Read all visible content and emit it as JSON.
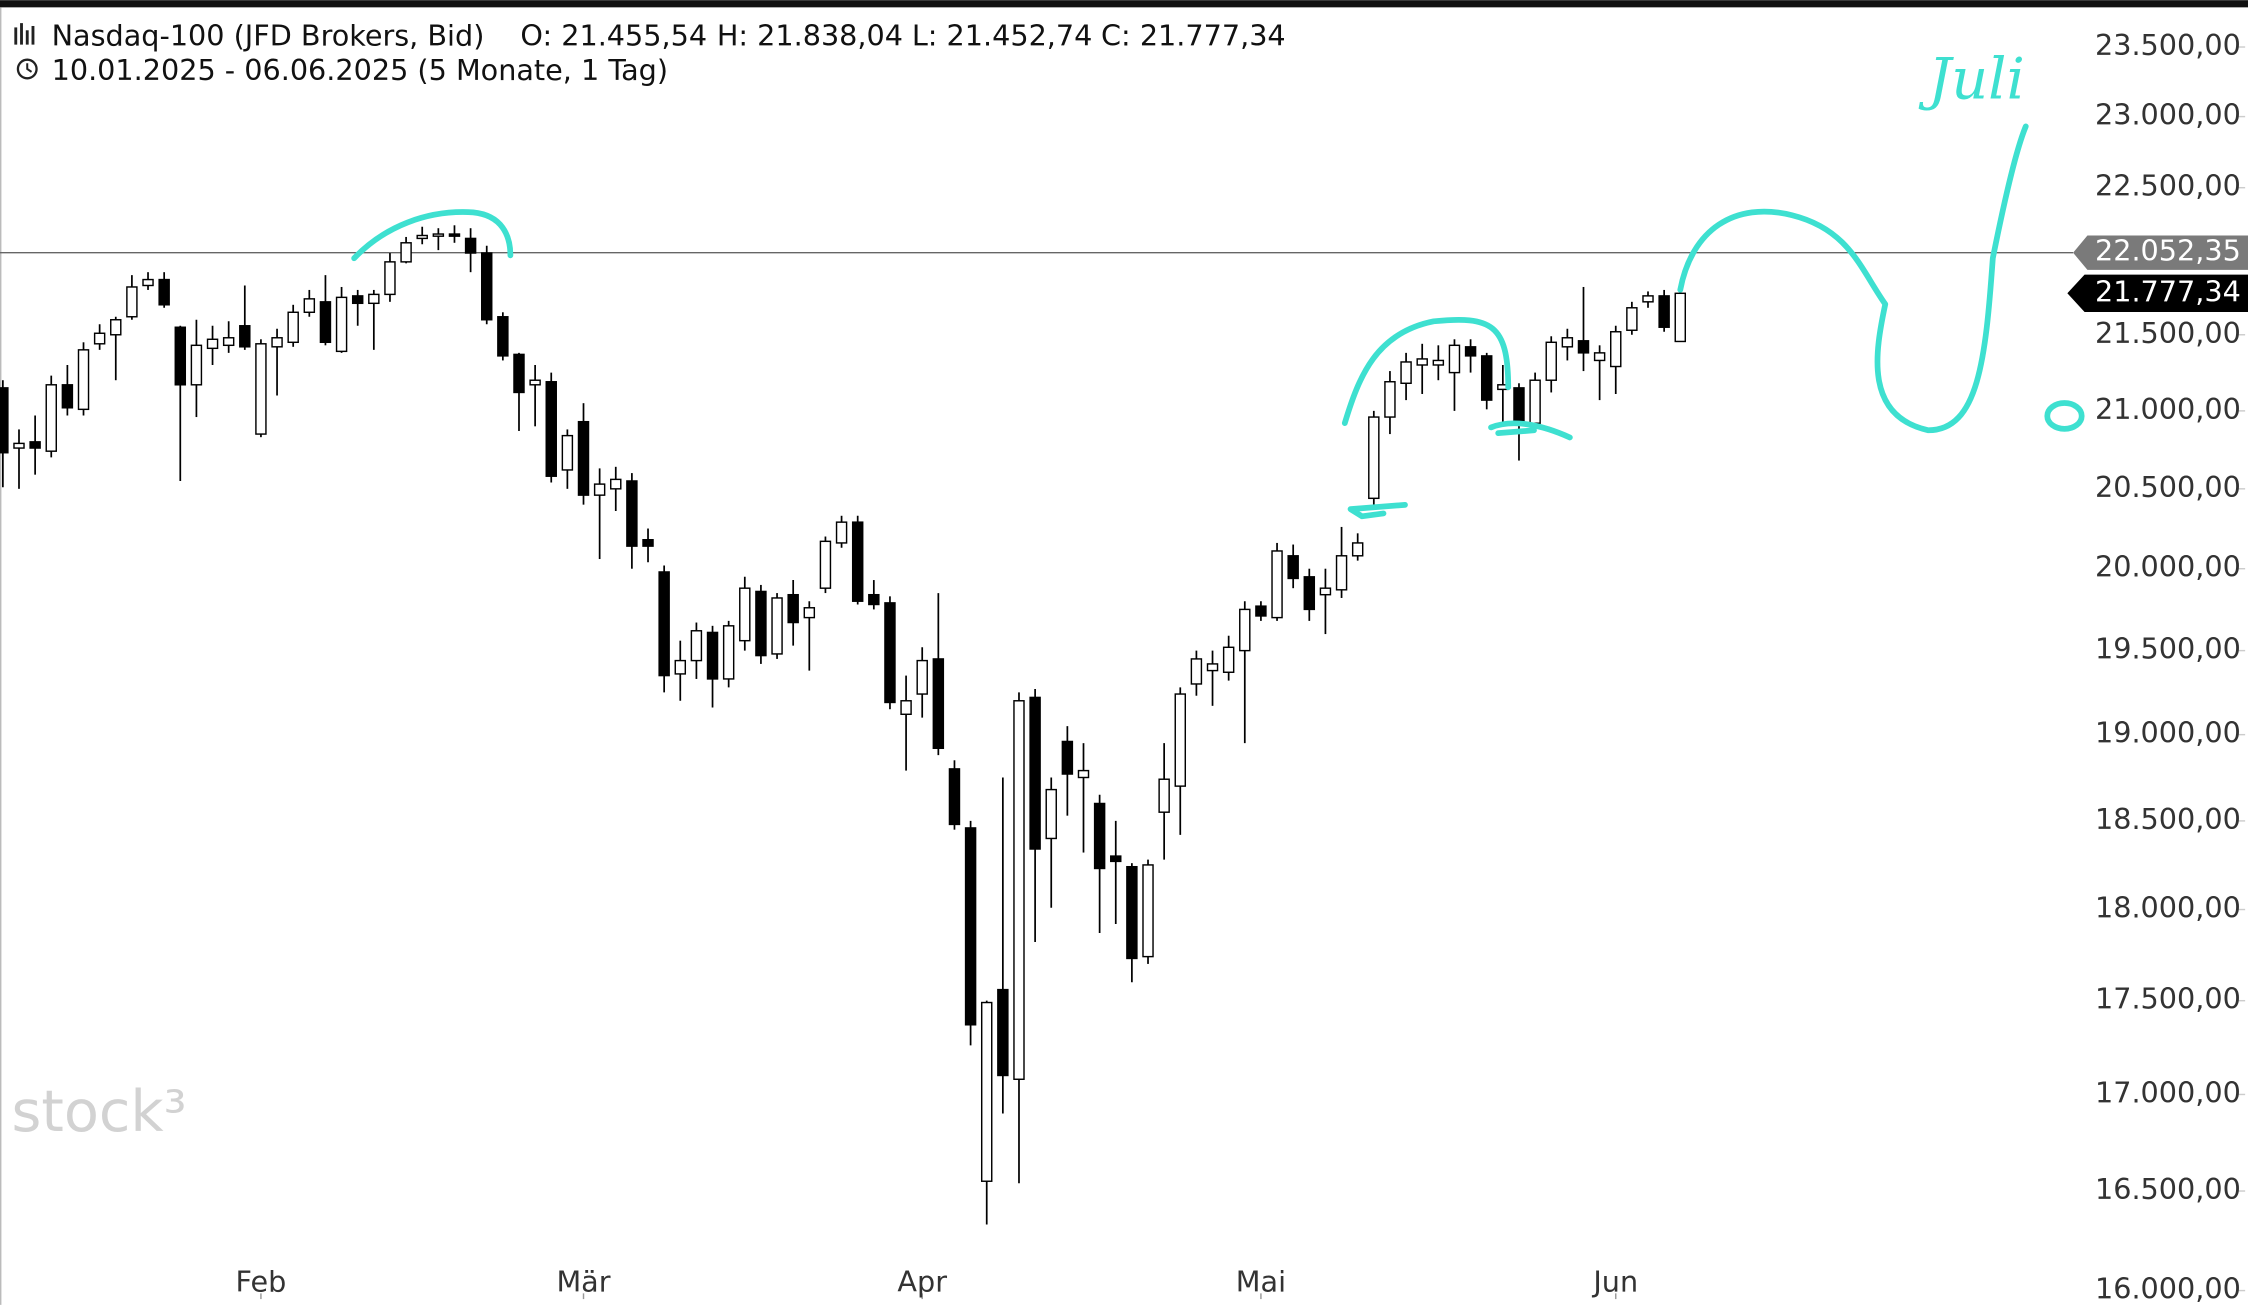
{
  "chart_data": {
    "type": "candlestick",
    "title": "Nasdaq-100 (JFD Brokers, Bid)",
    "ohlc_header": [
      "O: 21.455,54",
      "H: 21.838,04",
      "L: 21.452,74",
      "C: 21.777,34"
    ],
    "subtitle": "10.01.2025 - 06.06.2025  (5 Monate, 1 Tag)",
    "watermark": "stock³",
    "annotation": "Juli",
    "up_color": "#ffffff",
    "down_color": "#000000",
    "log_scale": true,
    "ylim": [
      15965,
      23790
    ],
    "yticks": [
      {
        "value": 23500,
        "label": "23.500,00"
      },
      {
        "value": 23000,
        "label": "23.000,00"
      },
      {
        "value": 22500,
        "label": "22.500,00"
      },
      {
        "value": 21500,
        "label": "21.500,00"
      },
      {
        "value": 21000,
        "label": "21.000,00"
      },
      {
        "value": 20500,
        "label": "20.500,00"
      },
      {
        "value": 20000,
        "label": "20.000,00"
      },
      {
        "value": 19500,
        "label": "19.500,00"
      },
      {
        "value": 19000,
        "label": "19.000,00"
      },
      {
        "value": 18500,
        "label": "18.500,00"
      },
      {
        "value": 18000,
        "label": "18.000,00"
      },
      {
        "value": 17500,
        "label": "17.500,00"
      },
      {
        "value": 17000,
        "label": "17.000,00"
      },
      {
        "value": 16500,
        "label": "16.500,00"
      },
      {
        "value": 16000,
        "label": "16.000,00"
      }
    ],
    "level_line": {
      "value": 22052.35,
      "label": "22.052,35"
    },
    "last_price": {
      "value": 21777.34,
      "label": "21.777,34"
    },
    "categories": [
      null,
      null,
      null,
      null,
      null,
      null,
      null,
      null,
      null,
      null,
      null,
      null,
      null,
      null,
      null,
      null,
      "Feb",
      null,
      null,
      null,
      null,
      null,
      null,
      null,
      null,
      null,
      null,
      null,
      null,
      null,
      null,
      null,
      null,
      null,
      null,
      null,
      "Mär",
      null,
      null,
      null,
      null,
      null,
      null,
      null,
      null,
      null,
      null,
      null,
      null,
      null,
      null,
      null,
      null,
      null,
      null,
      null,
      null,
      "Apr",
      null,
      null,
      null,
      null,
      null,
      null,
      null,
      null,
      null,
      null,
      null,
      null,
      null,
      null,
      null,
      null,
      null,
      null,
      null,
      null,
      "Mai",
      null,
      null,
      null,
      null,
      null,
      null,
      null,
      null,
      null,
      null,
      null,
      null,
      null,
      null,
      null,
      null,
      null,
      null,
      null,
      null,
      null,
      "Jun",
      null,
      null,
      null,
      null
    ],
    "open": [
      21150,
      20760,
      20800,
      20740,
      21170,
      21010,
      21440,
      21500,
      21620,
      21830,
      21870,
      21550,
      21170,
      21410,
      21430,
      21560,
      20850,
      21420,
      21450,
      21650,
      21720,
      21390,
      21760,
      21710,
      21770,
      21990,
      22150,
      22170,
      22180,
      22150,
      22050,
      21620,
      21370,
      21170,
      21190,
      20620,
      20930,
      20460,
      20500,
      20550,
      20180,
      19980,
      19360,
      19440,
      19610,
      19330,
      19560,
      19860,
      19480,
      19840,
      19700,
      19880,
      20160,
      20290,
      19840,
      19790,
      19120,
      19240,
      19450,
      18800,
      18460,
      16550,
      17560,
      17080,
      19220,
      18400,
      18960,
      18750,
      18600,
      18300,
      18240,
      17740,
      18550,
      18700,
      19300,
      19380,
      19370,
      19500,
      19770,
      19700,
      20080,
      19950,
      19840,
      19870,
      20080,
      20440,
      20960,
      21180,
      21300,
      21300,
      21250,
      21420,
      21360,
      21140,
      21150,
      20920,
      21200,
      21420,
      21460,
      21330,
      21290,
      21530,
      21720,
      21760,
      21455.54
    ],
    "high": [
      21200,
      20880,
      20970,
      21230,
      21300,
      21450,
      21570,
      21620,
      21900,
      21920,
      21920,
      21560,
      21600,
      21560,
      21590,
      21830,
      21470,
      21540,
      21700,
      21800,
      21900,
      21820,
      21800,
      21800,
      22050,
      22160,
      22230,
      22220,
      22240,
      22220,
      22100,
      21650,
      21380,
      21300,
      21250,
      20880,
      21050,
      20630,
      20640,
      20600,
      20250,
      20020,
      19560,
      19670,
      19650,
      19680,
      19950,
      19900,
      19850,
      19930,
      19800,
      20200,
      20330,
      20330,
      19930,
      19830,
      19350,
      19520,
      19850,
      18850,
      18500,
      17500,
      18750,
      19250,
      19270,
      18750,
      19050,
      18950,
      18650,
      18500,
      18260,
      18280,
      18950,
      19280,
      19500,
      19500,
      19590,
      19800,
      19800,
      20160,
      20150,
      20000,
      20000,
      20260,
      20220,
      21000,
      21260,
      21380,
      21440,
      21430,
      21470,
      21470,
      21380,
      21300,
      21180,
      21250,
      21490,
      21540,
      21820,
      21430,
      21560,
      21720,
      21790,
      21800,
      21838.04
    ],
    "low": [
      20510,
      20500,
      20590,
      20700,
      20970,
      20970,
      21400,
      21200,
      21600,
      21800,
      21680,
      20550,
      20960,
      21300,
      21380,
      21400,
      20830,
      21100,
      21420,
      21620,
      21430,
      21380,
      21560,
      21400,
      21720,
      21980,
      22110,
      22070,
      22120,
      21920,
      21570,
      21330,
      20870,
      20900,
      20540,
      20500,
      20400,
      20060,
      20360,
      20000,
      20040,
      19250,
      19200,
      19330,
      19160,
      19280,
      19500,
      19420,
      19450,
      19530,
      19380,
      19850,
      20130,
      19780,
      19750,
      19150,
      18790,
      19100,
      18880,
      18450,
      17260,
      16330,
      16900,
      16540,
      17820,
      18010,
      18530,
      18320,
      17870,
      17920,
      17600,
      17700,
      18280,
      18420,
      19230,
      19170,
      19320,
      18950,
      19680,
      19680,
      19880,
      19680,
      19600,
      19820,
      20050,
      20400,
      20850,
      21070,
      21110,
      21200,
      21000,
      21250,
      21010,
      20900,
      20680,
      20870,
      21120,
      21330,
      21260,
      21070,
      21110,
      21500,
      21680,
      21520,
      21452.74
    ],
    "close": [
      20730,
      20790,
      20760,
      21170,
      21020,
      21400,
      21510,
      21600,
      21820,
      21870,
      21700,
      21170,
      21430,
      21470,
      21480,
      21420,
      21440,
      21480,
      21650,
      21740,
      21450,
      21750,
      21710,
      21770,
      21990,
      22120,
      22170,
      22180,
      22170,
      22050,
      21600,
      21360,
      21120,
      21200,
      20580,
      20840,
      20460,
      20530,
      20560,
      20140,
      20140,
      19350,
      19440,
      19620,
      19330,
      19650,
      19880,
      19470,
      19820,
      19670,
      19760,
      20170,
      20290,
      19800,
      19780,
      19190,
      19200,
      19440,
      18920,
      18480,
      17370,
      17490,
      17100,
      19200,
      18340,
      18680,
      18770,
      18790,
      18230,
      18270,
      17730,
      18250,
      18740,
      19240,
      19450,
      19420,
      19520,
      19750,
      19710,
      20110,
      19940,
      19750,
      19880,
      20080,
      20160,
      20960,
      21190,
      21320,
      21340,
      21330,
      21430,
      21360,
      21070,
      21170,
      20920,
      21200,
      21450,
      21480,
      21380,
      21380,
      21520,
      21680,
      21760,
      21550,
      21777.34
    ]
  }
}
